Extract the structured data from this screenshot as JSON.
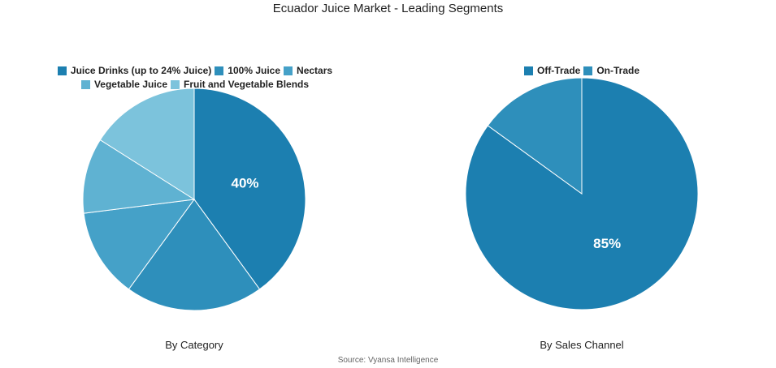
{
  "title": "Ecuador Juice Market - Leading Segments",
  "source": "Source: Vyansa Intelligence",
  "chart_data": [
    {
      "type": "pie",
      "subtitle": "By Category",
      "categories": [
        "Juice Drinks (up to 24% Juice)",
        "100% Juice",
        "Nectars",
        "Vegetable Juice",
        "Fruit and Vegetable Blends"
      ],
      "values": [
        40,
        20,
        13,
        11,
        16
      ],
      "colors": [
        "#1c7fb0",
        "#2e8fbb",
        "#45a1c8",
        "#5fb2d2",
        "#7cc3dc"
      ],
      "data_labels": [
        "40%",
        "",
        "",
        "",
        ""
      ],
      "legend_position": "top"
    },
    {
      "type": "pie",
      "subtitle": "By Sales Channel",
      "categories": [
        "Off-Trade",
        "On-Trade"
      ],
      "values": [
        85,
        15
      ],
      "colors": [
        "#1c7fb0",
        "#2e8fbb"
      ],
      "data_labels": [
        "85%",
        ""
      ],
      "legend_position": "top"
    }
  ]
}
